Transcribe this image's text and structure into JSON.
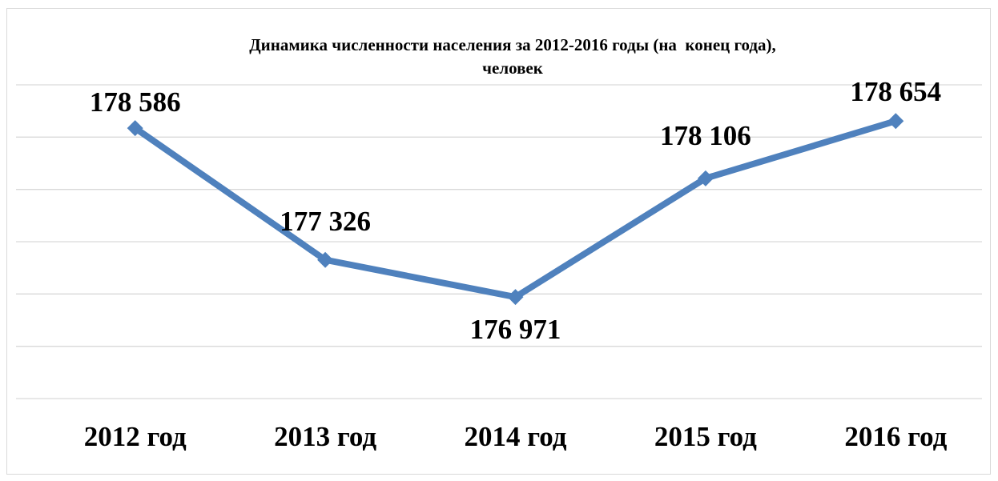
{
  "chart_data": {
    "type": "line",
    "title": "Динамика численности населения за 2012-2016 годы (на  конец года),\nчеловек",
    "categories": [
      "2012 год",
      "2013 год",
      "2014 год",
      "2015 год",
      "2016 год"
    ],
    "series": [
      {
        "color": "#4f81bd",
        "values": [
          178586,
          177326,
          176971,
          178106,
          178654
        ],
        "value_labels": [
          "178 586",
          "177 326",
          "176 971",
          "178 106",
          "178 654"
        ]
      }
    ],
    "ylim": [
      176000,
      179000
    ],
    "yticks": [
      176000,
      176500,
      177000,
      177500,
      178000,
      178500,
      179000
    ],
    "grid": true
  }
}
